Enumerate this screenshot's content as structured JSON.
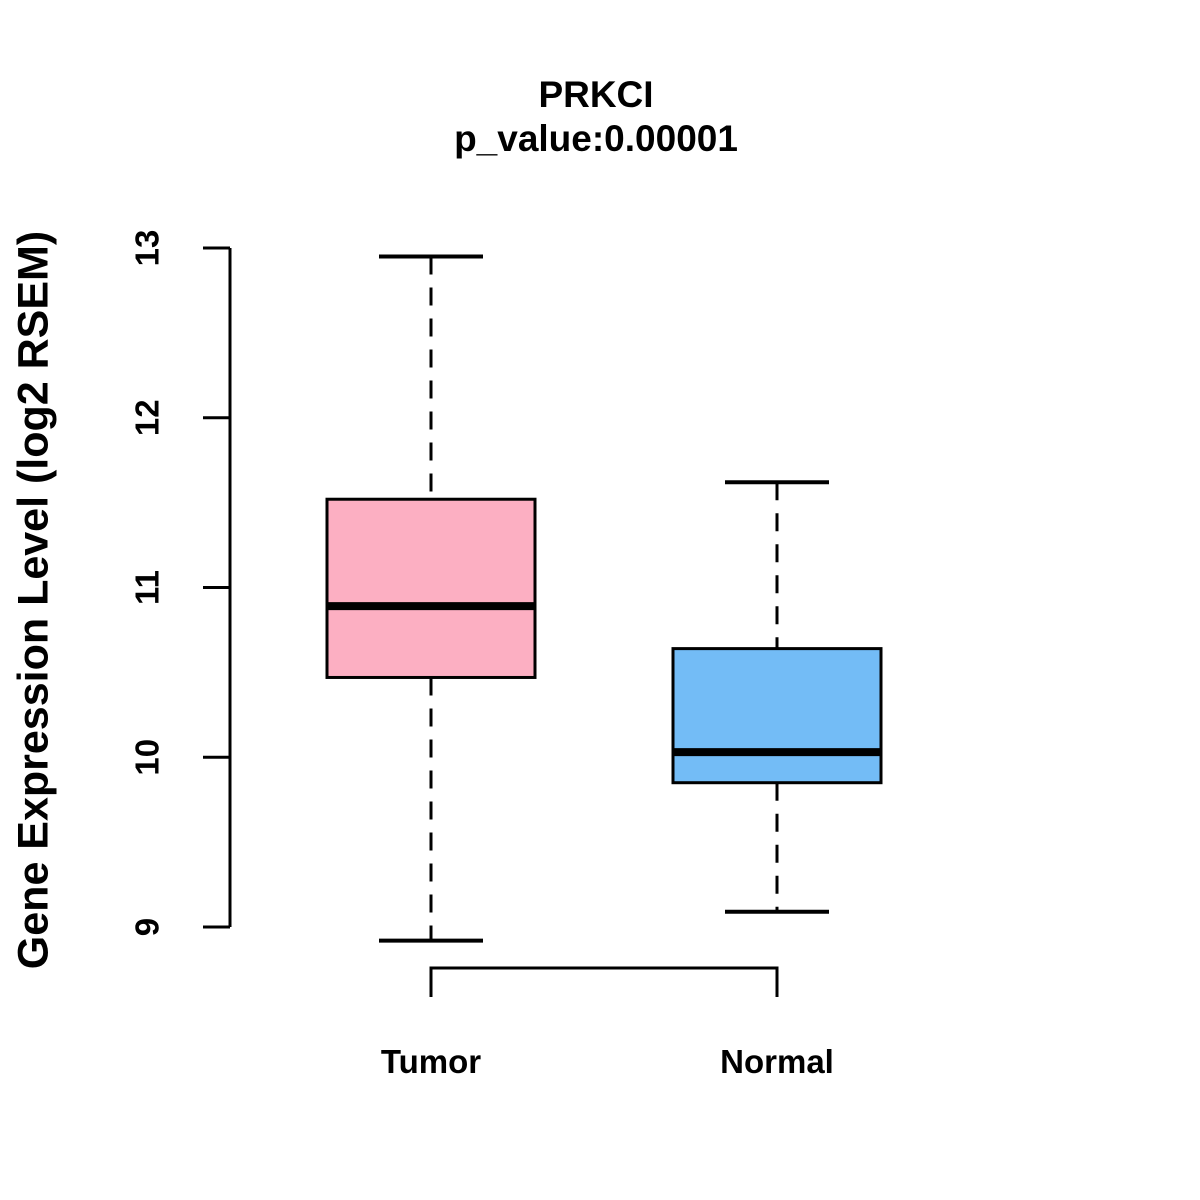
{
  "figure": {
    "title": "PRKCI",
    "subtitle": "p_value:0.00001",
    "y_axis_label": "Gene Expression Level (log2 RSEM)"
  },
  "colors": {
    "background": "#FFFFFF",
    "axis": "#000000",
    "text": "#000000",
    "tumor_fill": "#FCAFC2",
    "normal_fill": "#73BCF6",
    "box_border": "#000000",
    "median_line": "#000000"
  },
  "chart_data": {
    "type": "boxplot",
    "title": "PRKCI",
    "subtitle": "p_value:0.00001",
    "xlabel": "",
    "ylabel": "Gene Expression Level (log2 RSEM)",
    "categories": [
      "Tumor",
      "Normal"
    ],
    "yticks": [
      9,
      10,
      11,
      12,
      13
    ],
    "ylim": [
      8.6,
      13.1
    ],
    "grid": false,
    "legend": "none",
    "whisker_style": "dashed",
    "series": [
      {
        "name": "Tumor",
        "box_color": "#FCAFC2",
        "whisker_low": 8.92,
        "q1": 10.47,
        "median": 10.89,
        "q3": 11.52,
        "whisker_high": 12.95
      },
      {
        "name": "Normal",
        "box_color": "#73BCF6",
        "whisker_low": 9.09,
        "q1": 9.85,
        "median": 10.03,
        "q3": 10.64,
        "whisker_high": 11.62
      }
    ]
  }
}
